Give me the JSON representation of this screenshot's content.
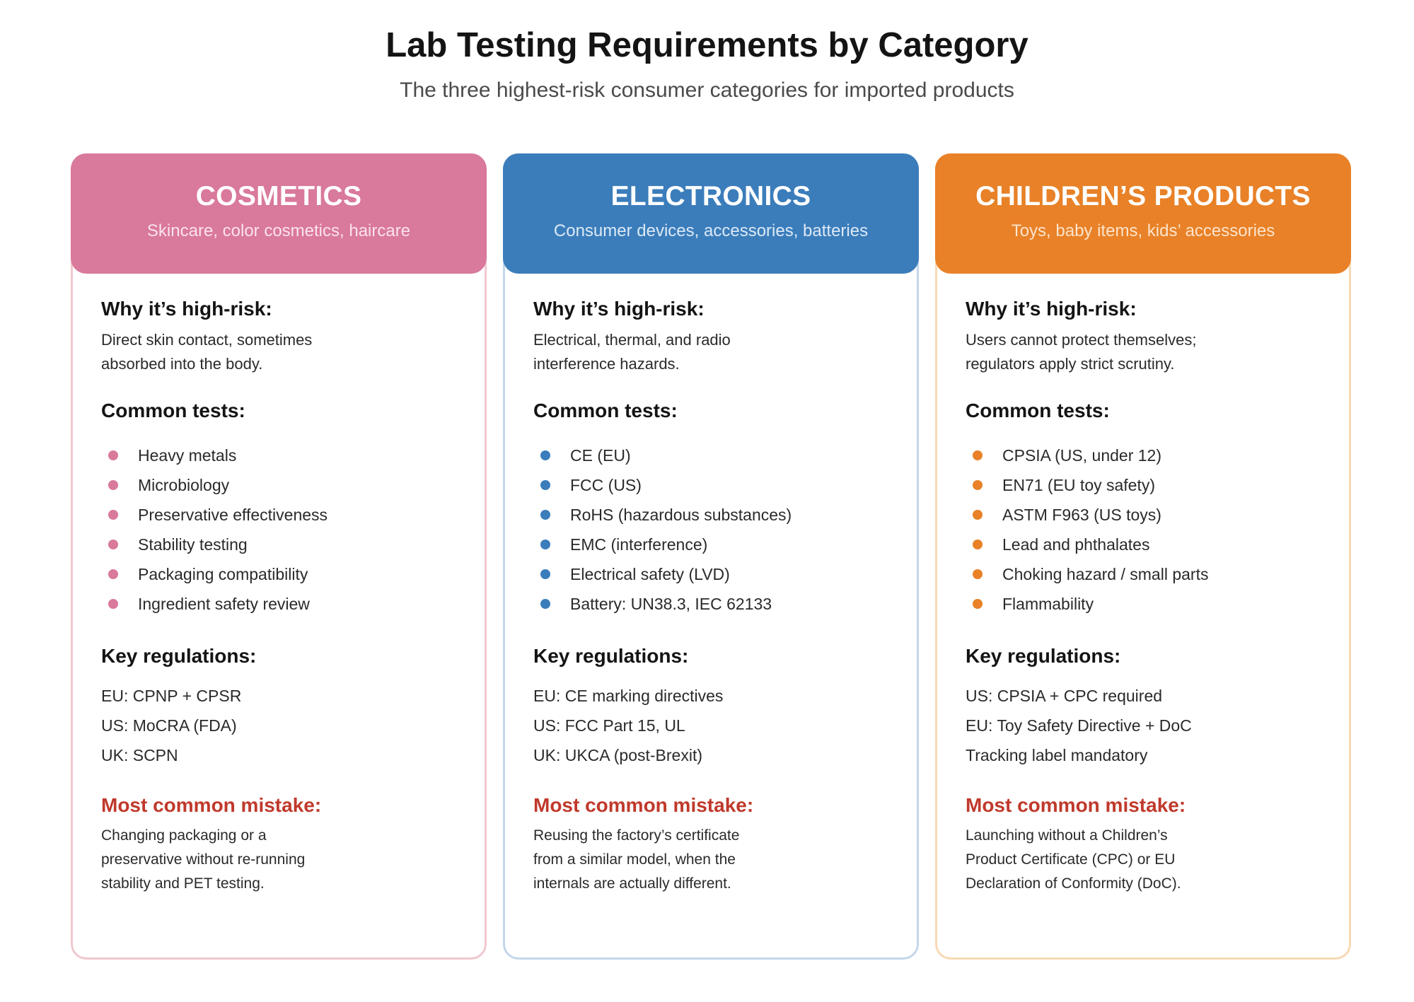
{
  "header": {
    "title": "Lab Testing Requirements by Category",
    "subtitle": "The three highest-risk consumer categories for imported products"
  },
  "labels": {
    "why": "Why it’s high-risk:",
    "tests": "Common tests:",
    "regs": "Key regulations:",
    "mistake": "Most common mistake:"
  },
  "colors": {
    "mistake": "#c0392b"
  },
  "cards": [
    {
      "title": "COSMETICS",
      "desc": "Skincare, color cosmetics, haircare",
      "color": "#d9799c",
      "border_color": "#f0c8cf",
      "desc_color": "#fbe3ea",
      "why": "Direct skin contact, sometimes absorbed into the body.",
      "tests": [
        "Heavy metals",
        "Microbiology",
        "Preservative effectiveness",
        "Stability testing",
        "Packaging compatibility",
        "Ingredient safety review"
      ],
      "regs": [
        "EU: CPNP + CPSR",
        "US: MoCRA (FDA)",
        "UK: SCPN"
      ],
      "mistake": "Changing packaging or a preservative without re-running stability and PET testing."
    },
    {
      "title": "ELECTRONICS",
      "desc": "Consumer devices, accessories, batteries",
      "color": "#3b7dbb",
      "border_color": "#c4d6ea",
      "desc_color": "#dce9f6",
      "why": "Electrical, thermal, and radio interference hazards.",
      "tests": [
        "CE (EU)",
        "FCC (US)",
        "RoHS (hazardous substances)",
        "EMC (interference)",
        "Electrical safety (LVD)",
        "Battery: UN38.3, IEC 62133"
      ],
      "regs": [
        "EU: CE marking directives",
        "US: FCC Part 15, UL",
        "UK: UKCA (post-Brexit)"
      ],
      "mistake": "Reusing the factory’s certificate from a similar model, when the internals are actually different."
    },
    {
      "title": "CHILDREN’S PRODUCTS",
      "desc": "Toys, baby items, kids’ accessories",
      "color": "#e88127",
      "border_color": "#f7d9b3",
      "desc_color": "#fde4cc",
      "why": "Users cannot protect themselves; regulators apply strict scrutiny.",
      "tests": [
        "CPSIA (US, under 12)",
        "EN71 (EU toy safety)",
        "ASTM F963 (US toys)",
        "Lead and phthalates",
        "Choking hazard / small parts",
        "Flammability"
      ],
      "regs": [
        "US: CPSIA + CPC required",
        "EU: Toy Safety Directive + DoC",
        "Tracking label mandatory"
      ],
      "mistake": "Launching without a Children’s Product Certificate (CPC) or EU Declaration of Conformity (DoC)."
    }
  ]
}
